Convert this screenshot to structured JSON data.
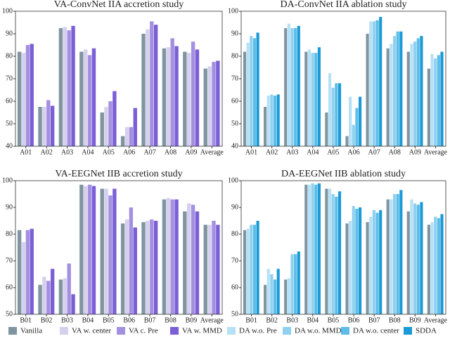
{
  "chart_data": [
    {
      "type": "bar",
      "title": "VA-ConvNet IIA accretion study",
      "categories": [
        "A01",
        "A02",
        "A03",
        "A04",
        "A05",
        "A06",
        "A07",
        "A08",
        "A09",
        "Average"
      ],
      "ylim": [
        40,
        100
      ],
      "yticks": [
        40,
        50,
        60,
        70,
        80,
        90,
        100
      ],
      "series": [
        {
          "name": "Vanilla",
          "color": "#7f959f",
          "values": [
            82,
            57.5,
            92.5,
            82,
            55,
            44.5,
            90,
            83.5,
            82,
            74.5
          ]
        },
        {
          "name": "VA w. center",
          "color": "#d6d0ee",
          "values": [
            81.5,
            57.5,
            93,
            83,
            57.5,
            48.5,
            92,
            84,
            81.5,
            75.5
          ]
        },
        {
          "name": "VA c. Pre",
          "color": "#a390e0",
          "values": [
            85,
            60.5,
            91.5,
            80.5,
            60,
            48.5,
            95.5,
            88,
            86.5,
            77.5
          ]
        },
        {
          "name": "VA w. MMD",
          "color": "#7b5fd6",
          "values": [
            85.5,
            58,
            93.5,
            83.5,
            64.5,
            57,
            94,
            84.5,
            83,
            78
          ]
        }
      ]
    },
    {
      "type": "bar",
      "title": "DA-ConvNet IIA ablation study",
      "categories": [
        "A01",
        "A02",
        "A03",
        "A04",
        "A05",
        "A06",
        "A07",
        "A08",
        "A09",
        "Average"
      ],
      "ylim": [
        40,
        100
      ],
      "yticks": [
        40,
        50,
        60,
        70,
        80,
        90,
        100
      ],
      "series": [
        {
          "name": "Vanilla",
          "color": "#7f959f",
          "values": [
            82,
            57.5,
            92.5,
            82,
            55,
            44.5,
            90,
            83.5,
            82,
            74.5
          ]
        },
        {
          "name": "DA w.o. Pre",
          "color": "#b6e0f5",
          "values": [
            86,
            62.5,
            94.5,
            83,
            72.5,
            62,
            95.5,
            85.5,
            85.5,
            81
          ]
        },
        {
          "name": "DA w.o. MMD",
          "color": "#8fd0f0",
          "values": [
            89,
            63,
            92.5,
            81.5,
            66,
            49.5,
            95.5,
            89,
            86.5,
            79
          ]
        },
        {
          "name": "DA w.o. center",
          "color": "#5bbde8",
          "values": [
            88,
            62.5,
            92.5,
            81.5,
            68,
            57,
            96,
            91,
            88,
            80.5
          ]
        },
        {
          "name": "SDDA",
          "color": "#1a9ad6",
          "values": [
            90.5,
            63,
            93.5,
            84,
            68,
            62,
            97.5,
            91,
            89,
            82
          ]
        }
      ]
    },
    {
      "type": "bar",
      "title": "VA-EEGNet IIB accretion study",
      "categories": [
        "B01",
        "B02",
        "B03",
        "B04",
        "B05",
        "B06",
        "B07",
        "B08",
        "B09",
        "Average"
      ],
      "ylim": [
        50,
        100
      ],
      "yticks": [
        50,
        60,
        70,
        80,
        90,
        100
      ],
      "series": [
        {
          "name": "Vanilla",
          "color": "#7f959f",
          "values": [
            81.5,
            61,
            63,
            98.5,
            97,
            84,
            84.5,
            93,
            88.5,
            83.5
          ]
        },
        {
          "name": "VA w. center",
          "color": "#d6d0ee",
          "values": [
            77,
            64,
            63.5,
            98,
            97,
            85.5,
            85,
            93.5,
            91.5,
            83.5
          ]
        },
        {
          "name": "VA c. Pre",
          "color": "#a390e0",
          "values": [
            81.5,
            62.5,
            69,
            98.5,
            94.5,
            90,
            85.5,
            93,
            91,
            85
          ]
        },
        {
          "name": "VA w. MMD",
          "color": "#7b5fd6",
          "values": [
            82,
            67,
            57.5,
            98,
            97,
            82.5,
            85,
            93,
            88.5,
            83.5
          ]
        }
      ]
    },
    {
      "type": "bar",
      "title": "DA-EEGNet IIB ablation study",
      "categories": [
        "B01",
        "B02",
        "B03",
        "B04",
        "B05",
        "B06",
        "B07",
        "B08",
        "B09",
        "Average"
      ],
      "ylim": [
        50,
        100
      ],
      "yticks": [
        50,
        60,
        70,
        80,
        90,
        100
      ],
      "series": [
        {
          "name": "Vanilla",
          "color": "#7f959f",
          "values": [
            81.5,
            61,
            63,
            98.5,
            97,
            84,
            84.5,
            93,
            88.5,
            83.5
          ]
        },
        {
          "name": "DA w.o. Pre",
          "color": "#b6e0f5",
          "values": [
            82,
            67,
            63.5,
            98.5,
            97,
            85,
            86.5,
            93,
            93,
            84.5
          ]
        },
        {
          "name": "DA w.o. MMD",
          "color": "#8fd0f0",
          "values": [
            83.5,
            65,
            72.5,
            99,
            95,
            90.5,
            89,
            95,
            91.5,
            86.5
          ]
        },
        {
          "name": "DA w.o. center",
          "color": "#5bbde8",
          "values": [
            83.5,
            63,
            72.5,
            98.5,
            94,
            89.5,
            88,
            95,
            91,
            86
          ]
        },
        {
          "name": "SDDA",
          "color": "#1a9ad6",
          "values": [
            85,
            67,
            73.5,
            99,
            96,
            90,
            89,
            96.5,
            92,
            87.5
          ]
        }
      ]
    }
  ]
}
